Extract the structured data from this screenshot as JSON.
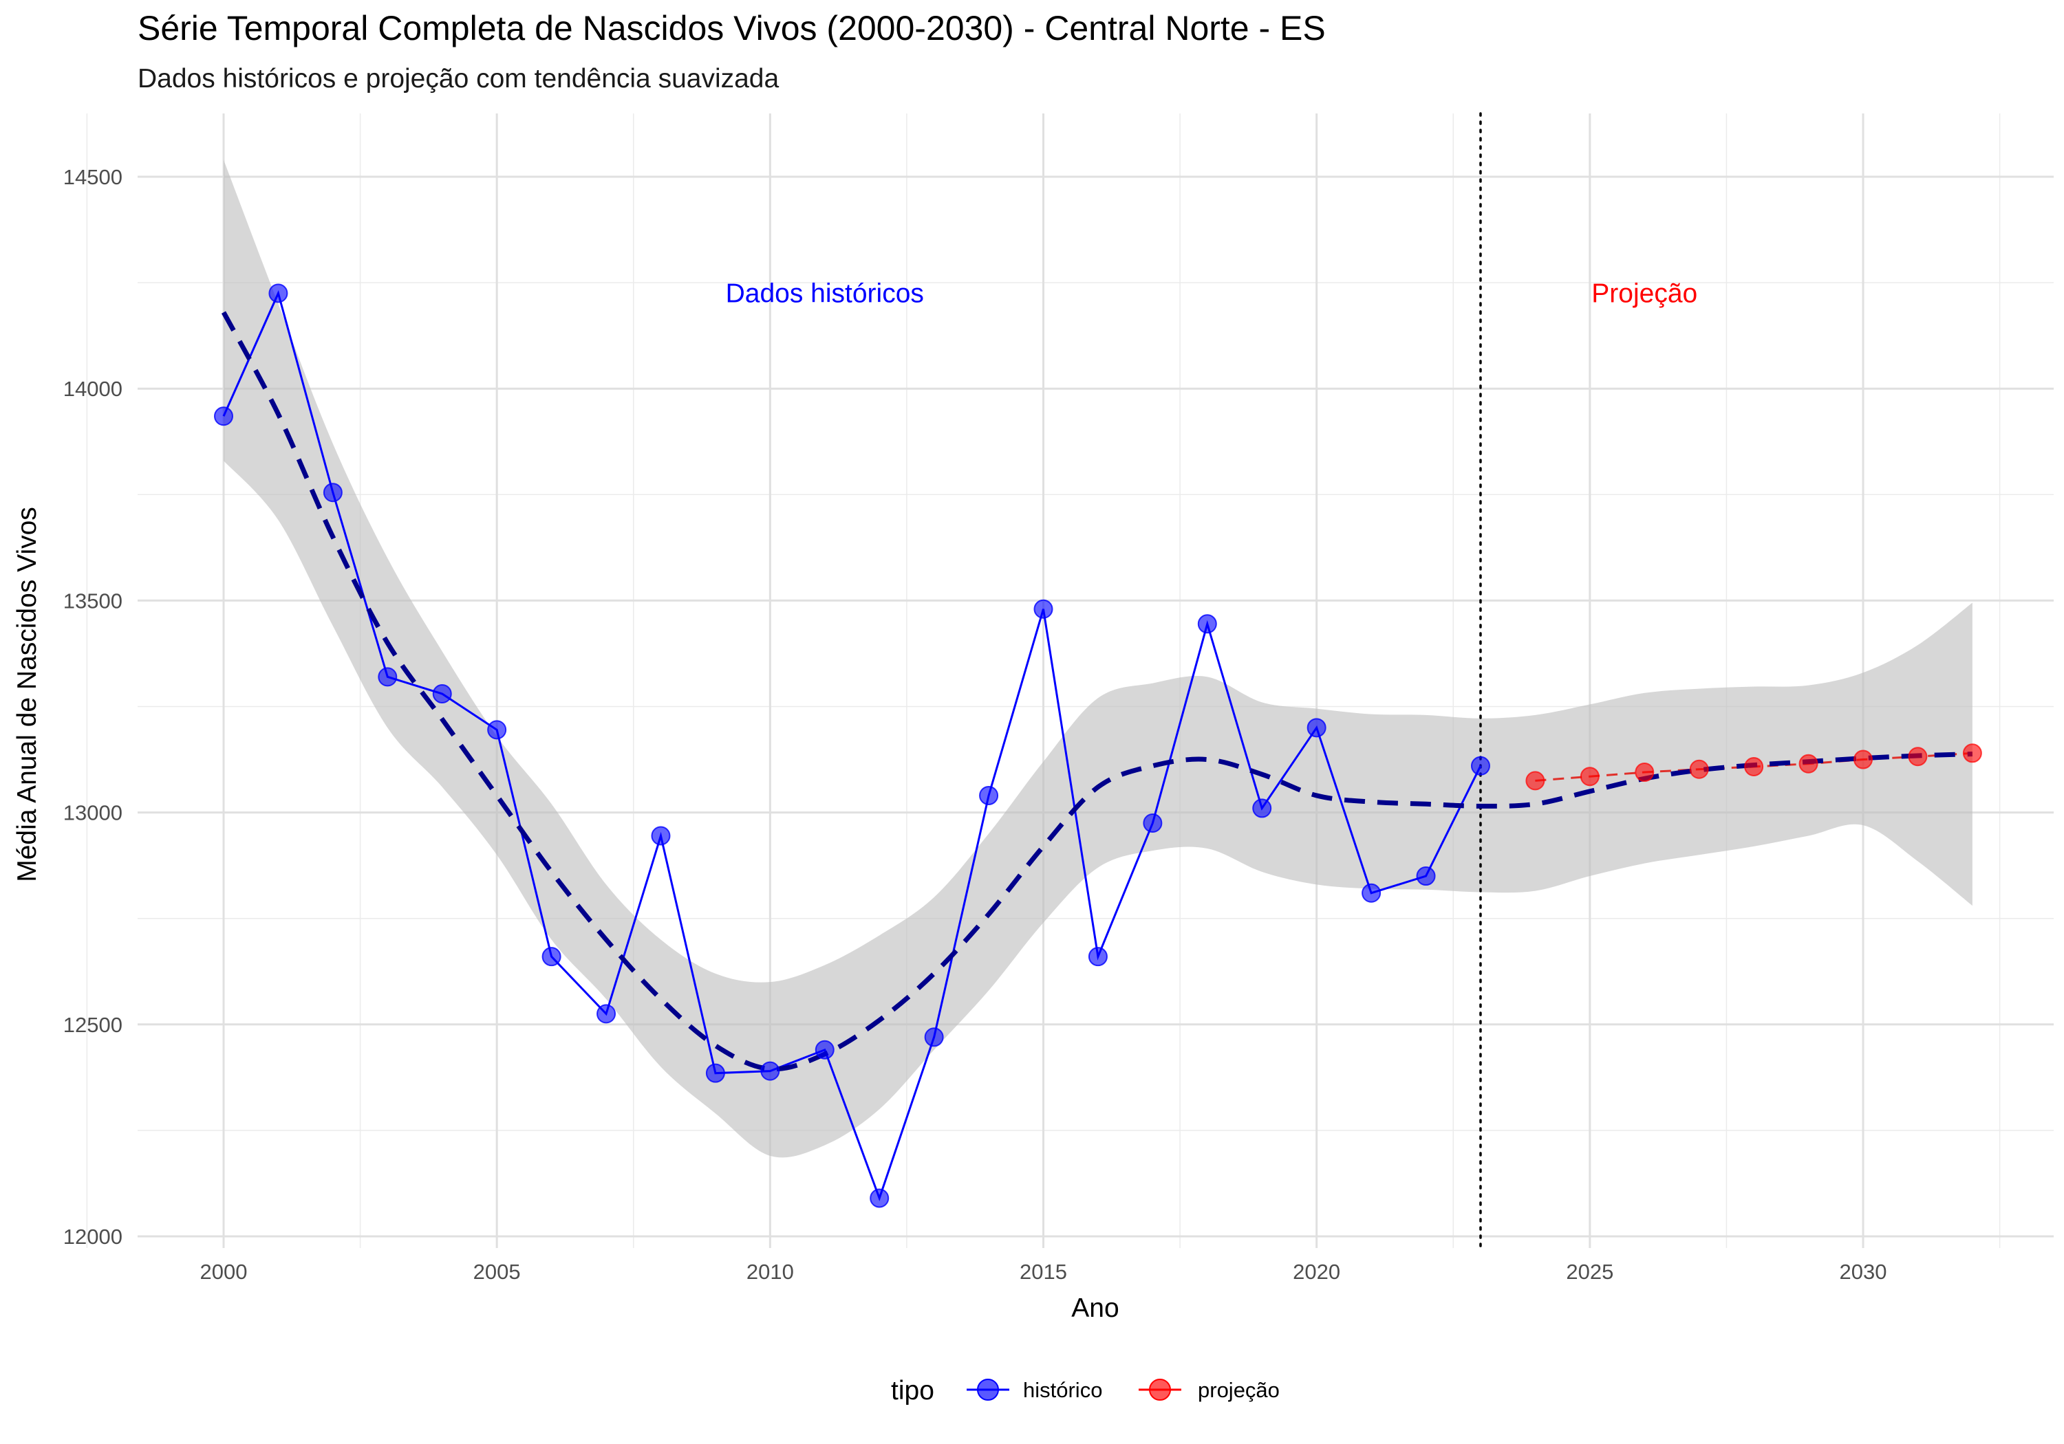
{
  "chart_data": {
    "type": "line",
    "title": "Série Temporal Completa de Nascidos Vivos (2000-2030) -  Central Norte - ES",
    "subtitle": "Dados históricos e projeção com tendência suavizada",
    "xlabel": "Ano",
    "ylabel": "Média Anual de Nascidos Vivos",
    "xlim": [
      1998.5,
      2033.5
    ],
    "ylim": [
      11980,
      14660
    ],
    "x_ticks": [
      2000,
      2005,
      2010,
      2015,
      2020,
      2025,
      2030
    ],
    "y_ticks": [
      12000,
      12500,
      13000,
      13500,
      14000,
      14500
    ],
    "grid": true,
    "series": [
      {
        "name": "histórico",
        "color": "#0000ff",
        "x": [
          2000,
          2001,
          2002,
          2003,
          2004,
          2005,
          2006,
          2007,
          2008,
          2009,
          2010,
          2011,
          2012,
          2013,
          2014,
          2015,
          2016,
          2017,
          2018,
          2019,
          2020,
          2021,
          2022,
          2023
        ],
        "values": [
          13935,
          14225,
          13755,
          13320,
          13280,
          13195,
          12660,
          12525,
          12945,
          12385,
          12390,
          12440,
          12090,
          12470,
          13040,
          13480,
          12660,
          12975,
          13445,
          13010,
          13200,
          12810,
          12850,
          13110
        ]
      },
      {
        "name": "projeção",
        "color": "#ff0000",
        "x": [
          2024,
          2025,
          2026,
          2027,
          2028,
          2029,
          2030,
          2031,
          2032
        ],
        "values": [
          13075,
          13085,
          13095,
          13102,
          13108,
          13115,
          13125,
          13132,
          13140
        ]
      }
    ],
    "trend": {
      "color": "#00008b",
      "x": [
        2000,
        2001,
        2002,
        2003,
        2004,
        2005,
        2006,
        2007,
        2008,
        2009,
        2010,
        2011,
        2012,
        2013,
        2014,
        2015,
        2016,
        2017,
        2018,
        2019,
        2020,
        2021,
        2022,
        2023,
        2024,
        2025,
        2026,
        2027,
        2028,
        2029,
        2030,
        2031,
        2032
      ],
      "values": [
        14180,
        13940,
        13650,
        13400,
        13220,
        13040,
        12860,
        12700,
        12560,
        12450,
        12395,
        12430,
        12510,
        12620,
        12760,
        12920,
        13060,
        13110,
        13125,
        13090,
        13040,
        13025,
        13020,
        13015,
        13020,
        13050,
        13080,
        13100,
        13112,
        13120,
        13128,
        13134,
        13138
      ],
      "ci_upper": [
        14540,
        14200,
        13870,
        13600,
        13380,
        13180,
        13020,
        12830,
        12700,
        12620,
        12600,
        12640,
        12710,
        12800,
        12950,
        13120,
        13270,
        13305,
        13320,
        13260,
        13245,
        13232,
        13230,
        13222,
        13230,
        13255,
        13282,
        13292,
        13297,
        13300,
        13330,
        13395,
        13495
      ],
      "ci_lower": [
        13830,
        13690,
        13440,
        13200,
        13060,
        12900,
        12700,
        12560,
        12400,
        12290,
        12190,
        12215,
        12300,
        12440,
        12580,
        12740,
        12870,
        12910,
        12915,
        12860,
        12830,
        12820,
        12818,
        12812,
        12815,
        12850,
        12880,
        12900,
        12920,
        12945,
        12970,
        12885,
        12780
      ]
    },
    "separator_x": 2023,
    "annotations": [
      {
        "text": "Dados históricos",
        "x": 2011,
        "y": 14225,
        "color": "#0000ff"
      },
      {
        "text": "Projeção",
        "x": 2026,
        "y": 14225,
        "color": "#ff0000"
      }
    ],
    "legend": {
      "title": "tipo",
      "position": "bottom",
      "items": [
        {
          "label": "histórico",
          "color": "#0000ff"
        },
        {
          "label": "projeção",
          "color": "#ff0000"
        }
      ]
    }
  }
}
